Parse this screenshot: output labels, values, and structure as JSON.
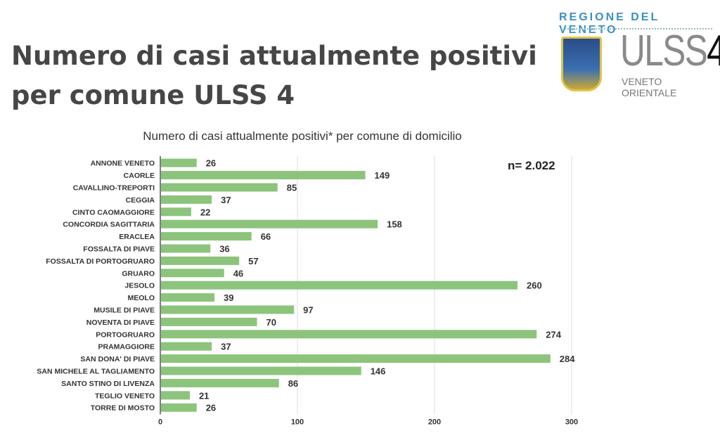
{
  "header": {
    "title_line1": "Numero di casi attualmente positivi",
    "title_line2": "per comune ULSS 4"
  },
  "logo": {
    "region": "REGIONE DEL VENETO",
    "brand_grey": "ULSS",
    "brand_black": "4",
    "subtitle": "VENETO ORIENTALE"
  },
  "chart_data": {
    "type": "bar",
    "orientation": "horizontal",
    "title": "Numero di casi attualmente positivi* per comune di domicilio",
    "annotation": "n=  2.022",
    "categories": [
      "ANNONE VENETO",
      "CAORLE",
      "CAVALLINO-TREPORTI",
      "CEGGIA",
      "CINTO CAOMAGGIORE",
      "CONCORDIA SAGITTARIA",
      "ERACLEA",
      "FOSSALTA DI PIAVE",
      "FOSSALTA DI PORTOGRUARO",
      "GRUARO",
      "JESOLO",
      "MEOLO",
      "MUSILE DI PIAVE",
      "NOVENTA DI PIAVE",
      "PORTOGRUARO",
      "PRAMAGGIORE",
      "SAN DONA' DI PIAVE",
      "SAN MICHELE AL TAGLIAMENTO",
      "SANTO STINO DI LIVENZA",
      "TEGLIO VENETO",
      "TORRE DI MOSTO"
    ],
    "values": [
      26,
      149,
      85,
      37,
      22,
      158,
      66,
      36,
      57,
      46,
      260,
      39,
      97,
      70,
      274,
      37,
      284,
      146,
      86,
      21,
      26
    ],
    "xlim": [
      0,
      300
    ],
    "xticks": [
      0,
      100,
      200,
      300
    ],
    "grid": true,
    "color": "#8cc47c"
  }
}
